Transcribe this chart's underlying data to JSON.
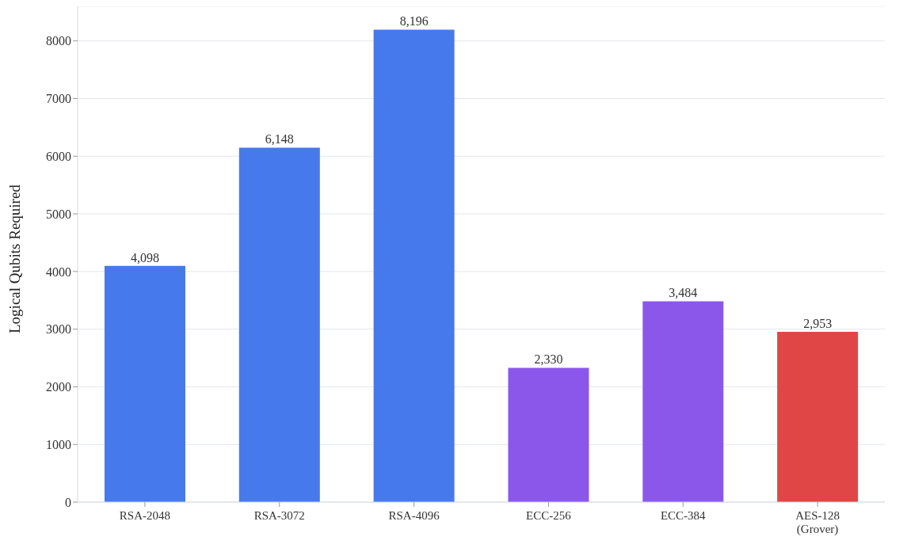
{
  "chart_data": {
    "type": "bar",
    "ylabel": "Logical Qubits Required",
    "categories": [
      "RSA-2048",
      "RSA-3072",
      "RSA-4096",
      "ECC-256",
      "ECC-384",
      "AES-128\n(Grover)"
    ],
    "values": [
      4098,
      6148,
      8196,
      2330,
      3484,
      2953
    ],
    "colors": [
      "#4679eb",
      "#4679eb",
      "#4679eb",
      "#8b57eb",
      "#8b57eb",
      "#e04646"
    ],
    "ylim": [
      0,
      8600
    ],
    "yticks": [
      0,
      1000,
      2000,
      3000,
      4000,
      5000,
      6000,
      7000,
      8000
    ],
    "value_labels": [
      "4,098",
      "6,148",
      "8,196",
      "2,330",
      "3,484",
      "2,953"
    ],
    "grid": "y"
  }
}
